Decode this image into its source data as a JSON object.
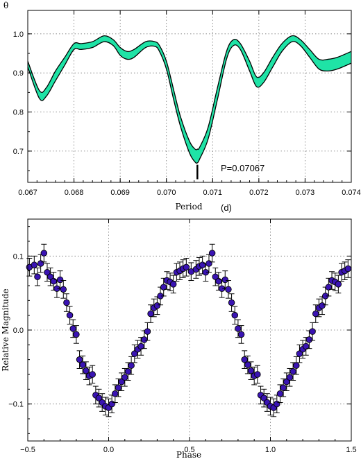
{
  "chart_data": [
    {
      "type": "line",
      "ylabel": "θ",
      "xlabel": "Period",
      "xunit": "(d)",
      "xlim": [
        0.067,
        0.074
      ],
      "ylim": [
        0.62,
        1.06
      ],
      "xticks": [
        "0.067",
        "0.068",
        "0.069",
        "0.070",
        "0.071",
        "0.072",
        "0.073",
        "0.074"
      ],
      "yticks": [
        "0.7",
        "0.8",
        "0.9",
        "1.0"
      ],
      "grid": true,
      "band_color": "#1fe3a6",
      "x": [
        0.067,
        0.06725,
        0.0674,
        0.0676,
        0.0678,
        0.068,
        0.06815,
        0.0684,
        0.06865,
        0.06885,
        0.069,
        0.06915,
        0.0693,
        0.06955,
        0.06975,
        0.06985,
        0.07,
        0.07015,
        0.0703,
        0.0705,
        0.07062,
        0.07067,
        0.07072,
        0.0709,
        0.0711,
        0.0713,
        0.07145,
        0.0716,
        0.0718,
        0.07195,
        0.0721,
        0.0723,
        0.0725,
        0.07272,
        0.0729,
        0.0731,
        0.0733,
        0.0735,
        0.0737,
        0.074
      ],
      "series": [
        {
          "values": [
            0.93,
            0.855,
            0.862,
            0.905,
            0.94,
            0.975,
            0.975,
            0.98,
            0.995,
            0.985,
            0.965,
            0.955,
            0.96,
            0.98,
            0.98,
            0.97,
            0.93,
            0.86,
            0.79,
            0.725,
            0.705,
            0.705,
            0.71,
            0.76,
            0.86,
            0.955,
            0.985,
            0.975,
            0.93,
            0.89,
            0.9,
            0.94,
            0.975,
            0.995,
            0.985,
            0.96,
            0.935,
            0.935,
            0.94,
            0.955
          ]
        },
        {
          "values": [
            0.915,
            0.835,
            0.84,
            0.88,
            0.92,
            0.96,
            0.96,
            0.965,
            0.98,
            0.97,
            0.945,
            0.935,
            0.94,
            0.965,
            0.968,
            0.955,
            0.91,
            0.835,
            0.765,
            0.695,
            0.672,
            0.67,
            0.68,
            0.73,
            0.83,
            0.935,
            0.97,
            0.96,
            0.905,
            0.865,
            0.875,
            0.915,
            0.955,
            0.98,
            0.97,
            0.94,
            0.91,
            0.905,
            0.91,
            0.925
          ]
        }
      ],
      "marker": {
        "x": 0.07067,
        "label": "P=0.07067"
      }
    },
    {
      "type": "scatter",
      "xlabel": "Phase",
      "ylabel": "Relative Magnitude",
      "xlim": [
        -0.5,
        1.5
      ],
      "ylim": [
        0.15,
        -0.15
      ],
      "xticks": [
        "−0.5",
        "0.0",
        "0.5",
        "1.0",
        "1.5"
      ],
      "yticks": [
        "−0.1",
        "0.0",
        "0.1"
      ],
      "grid": true,
      "point_color": "#3a14b3",
      "error": 0.012,
      "x": [
        -0.49,
        -0.46,
        -0.44,
        -0.42,
        -0.4,
        -0.38,
        -0.36,
        -0.34,
        -0.32,
        -0.3,
        -0.28,
        -0.26,
        -0.24,
        -0.22,
        -0.2,
        -0.18,
        -0.16,
        -0.14,
        -0.12,
        -0.1,
        -0.08,
        -0.06,
        -0.04,
        -0.02,
        0.0,
        0.02,
        0.04,
        0.06,
        0.08,
        0.1,
        0.12,
        0.14,
        0.16,
        0.18,
        0.2,
        0.22,
        0.24,
        0.26,
        0.28,
        0.3,
        0.32,
        0.34,
        0.36,
        0.38,
        0.4,
        0.42,
        0.44,
        0.46,
        0.48,
        0.51,
        0.54,
        0.56,
        0.58,
        0.6,
        0.62,
        0.64,
        0.66,
        0.68,
        0.7,
        0.72,
        0.74,
        0.76,
        0.78,
        0.8,
        0.82,
        0.84,
        0.86,
        0.88,
        0.9,
        0.92,
        0.94,
        0.96,
        0.98,
        1.0,
        1.02,
        1.04,
        1.06,
        1.08,
        1.1,
        1.12,
        1.14,
        1.16,
        1.18,
        1.2,
        1.22,
        1.24,
        1.26,
        1.28,
        1.3,
        1.32,
        1.34,
        1.36,
        1.38,
        1.4,
        1.42,
        1.44,
        1.46,
        1.48
      ],
      "y": [
        0.085,
        0.088,
        0.072,
        0.09,
        0.104,
        0.078,
        0.072,
        0.066,
        0.056,
        0.068,
        0.055,
        0.037,
        0.02,
        0.002,
        -0.006,
        -0.04,
        -0.047,
        -0.055,
        -0.062,
        -0.06,
        -0.088,
        -0.092,
        -0.098,
        -0.103,
        -0.105,
        -0.1,
        -0.086,
        -0.078,
        -0.07,
        -0.064,
        -0.056,
        -0.048,
        -0.032,
        -0.026,
        -0.022,
        -0.013,
        -0.002,
        0.022,
        0.03,
        0.033,
        0.046,
        0.058,
        0.067,
        0.065,
        0.062,
        0.078,
        0.08,
        0.083,
        0.085,
        0.079,
        0.082,
        0.086,
        0.088,
        0.078,
        0.09,
        0.104,
        0.072,
        0.066,
        0.056,
        0.068,
        0.055,
        0.037,
        0.02,
        0.002,
        -0.006,
        -0.04,
        -0.047,
        -0.055,
        -0.062,
        -0.06,
        -0.088,
        -0.092,
        -0.098,
        -0.103,
        -0.105,
        -0.1,
        -0.086,
        -0.078,
        -0.07,
        -0.064,
        -0.056,
        -0.048,
        -0.032,
        -0.026,
        -0.022,
        -0.013,
        -0.002,
        0.022,
        0.03,
        0.033,
        0.046,
        0.058,
        0.067,
        0.065,
        0.062,
        0.078,
        0.08,
        0.083
      ]
    }
  ]
}
